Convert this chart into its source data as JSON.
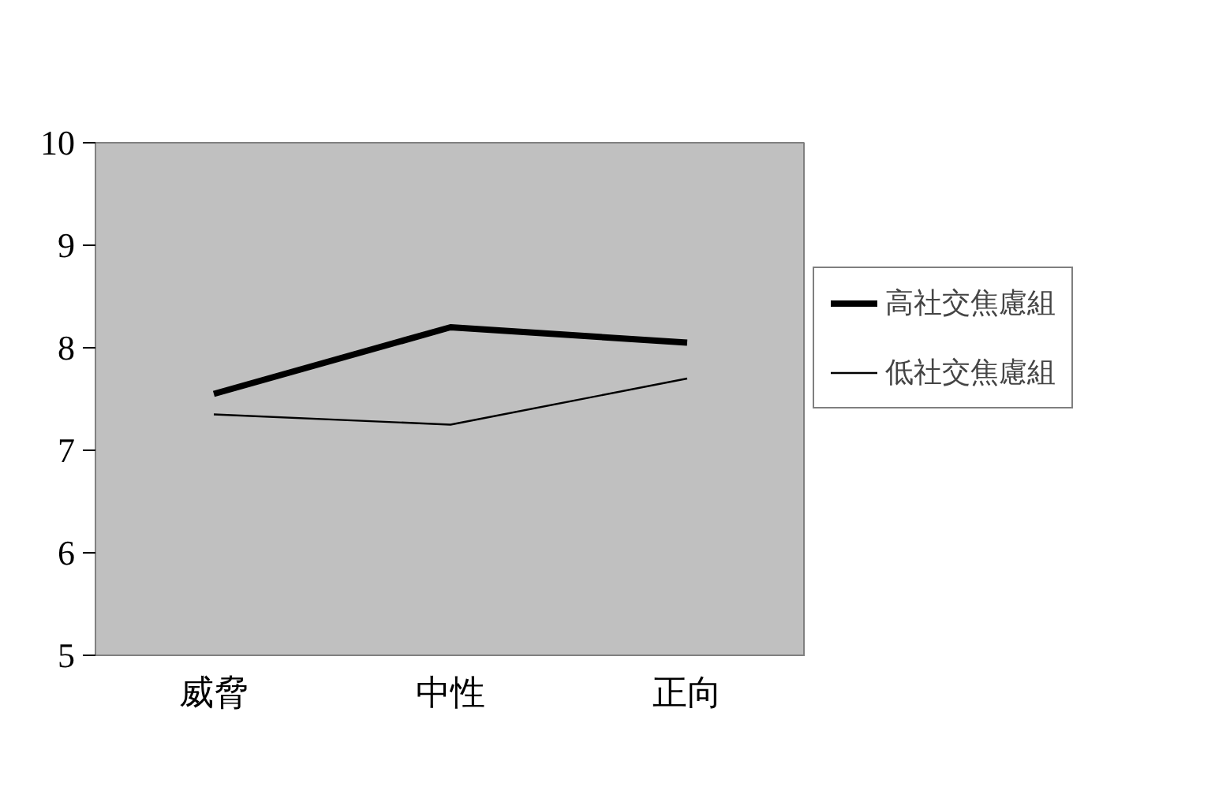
{
  "chart_data": {
    "type": "line",
    "categories": [
      "威脅",
      "中性",
      "正向"
    ],
    "series": [
      {
        "name": "高社交焦慮組",
        "color": "#000000",
        "values": [
          7.55,
          8.2,
          8.05
        ]
      },
      {
        "name": "低社交焦慮組",
        "color": "#000000",
        "values": [
          7.35,
          7.25,
          7.7
        ]
      }
    ],
    "ylim": [
      5,
      10
    ],
    "yticks": [
      5,
      6,
      7,
      8,
      9,
      10
    ],
    "grid": false,
    "legend": "right",
    "marker": "none",
    "line_style": "solid"
  }
}
